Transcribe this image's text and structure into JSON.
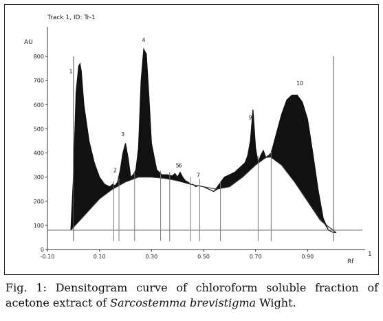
{
  "chart_data": {
    "type": "area",
    "title": "Track 1, ID: Tr-1",
    "ylabel": "AU",
    "xlabel": "Rf",
    "corner_label": "1",
    "xlim": [
      -0.1,
      1.1
    ],
    "ylim": [
      0,
      900
    ],
    "xticks": [
      -0.1,
      0.1,
      0.3,
      0.5,
      0.7,
      0.9
    ],
    "xtick_labels": [
      "-0.10",
      "0.10",
      "0.30",
      "0.50",
      "0.70",
      "0.90"
    ],
    "yticks": [
      0,
      100,
      200,
      300,
      400,
      500,
      600,
      700,
      800
    ],
    "ytick_labels": [
      "0",
      "100",
      "200",
      "300",
      "400",
      "500",
      "600",
      "700",
      "800"
    ],
    "series": [
      {
        "x": [
          -0.01,
          0.0,
          0.01,
          0.02,
          0.025,
          0.03,
          0.04,
          0.06,
          0.08,
          0.1,
          0.12,
          0.14,
          0.15,
          0.16,
          0.17,
          0.18,
          0.19,
          0.2,
          0.21,
          0.22,
          0.23,
          0.24,
          0.25,
          0.26,
          0.27,
          0.28,
          0.29,
          0.3,
          0.32,
          0.34,
          0.36,
          0.38,
          0.39,
          0.4,
          0.41,
          0.42,
          0.43,
          0.44,
          0.45,
          0.46,
          0.47,
          0.48,
          0.5,
          0.52,
          0.54,
          0.56,
          0.58,
          0.6,
          0.62,
          0.64,
          0.66,
          0.67,
          0.68,
          0.69,
          0.7,
          0.71,
          0.72,
          0.73,
          0.74,
          0.76,
          0.78,
          0.8,
          0.82,
          0.84,
          0.86,
          0.88,
          0.9,
          0.92,
          0.94,
          0.96,
          0.98,
          1.0,
          1.01
        ],
        "values": [
          80,
          300,
          650,
          760,
          770,
          740,
          600,
          450,
          360,
          300,
          270,
          260,
          270,
          265,
          280,
          330,
          400,
          440,
          380,
          300,
          310,
          330,
          420,
          700,
          830,
          810,
          640,
          440,
          330,
          310,
          310,
          305,
          315,
          300,
          320,
          300,
          285,
          280,
          270,
          270,
          260,
          265,
          260,
          250,
          240,
          270,
          300,
          310,
          320,
          340,
          360,
          390,
          450,
          580,
          420,
          360,
          390,
          410,
          380,
          400,
          480,
          560,
          620,
          640,
          640,
          610,
          540,
          400,
          250,
          130,
          80,
          70,
          70
        ]
      }
    ],
    "baseline": {
      "x": [
        -0.01,
        0.1,
        0.15,
        0.2,
        0.25,
        0.3,
        0.35,
        0.4,
        0.45,
        0.5,
        0.55,
        0.6,
        0.65,
        0.7,
        0.75,
        0.8,
        0.85,
        0.9,
        0.95,
        1.01
      ],
      "values": [
        80,
        210,
        250,
        280,
        300,
        300,
        295,
        285,
        270,
        260,
        250,
        260,
        300,
        350,
        390,
        350,
        280,
        200,
        120,
        70
      ]
    },
    "peak_labels": [
      {
        "label": "1",
        "x": -0.01,
        "y": 730
      },
      {
        "label": "2",
        "x": 0.16,
        "y": 320
      },
      {
        "label": "3",
        "x": 0.19,
        "y": 470
      },
      {
        "label": "4",
        "x": 0.27,
        "y": 860
      },
      {
        "label": "5",
        "x": 0.4,
        "y": 340
      },
      {
        "label": "6",
        "x": 0.41,
        "y": 340
      },
      {
        "label": "7",
        "x": 0.48,
        "y": 300
      },
      {
        "label": "9",
        "x": 0.68,
        "y": 540
      },
      {
        "label": "10",
        "x": 0.87,
        "y": 680
      }
    ],
    "markers_x": [
      0.0,
      0.155,
      0.175,
      0.235,
      0.335,
      0.37,
      0.45,
      0.485,
      0.565,
      0.71,
      0.76,
      1.0
    ],
    "grid": false,
    "legend": "none"
  },
  "caption": {
    "prefix": "Fig. 1: Densitogram curve of chloroform soluble fraction of acetone extract of ",
    "species": "Sarcostemma brevistigma",
    "suffix": " Wight."
  }
}
